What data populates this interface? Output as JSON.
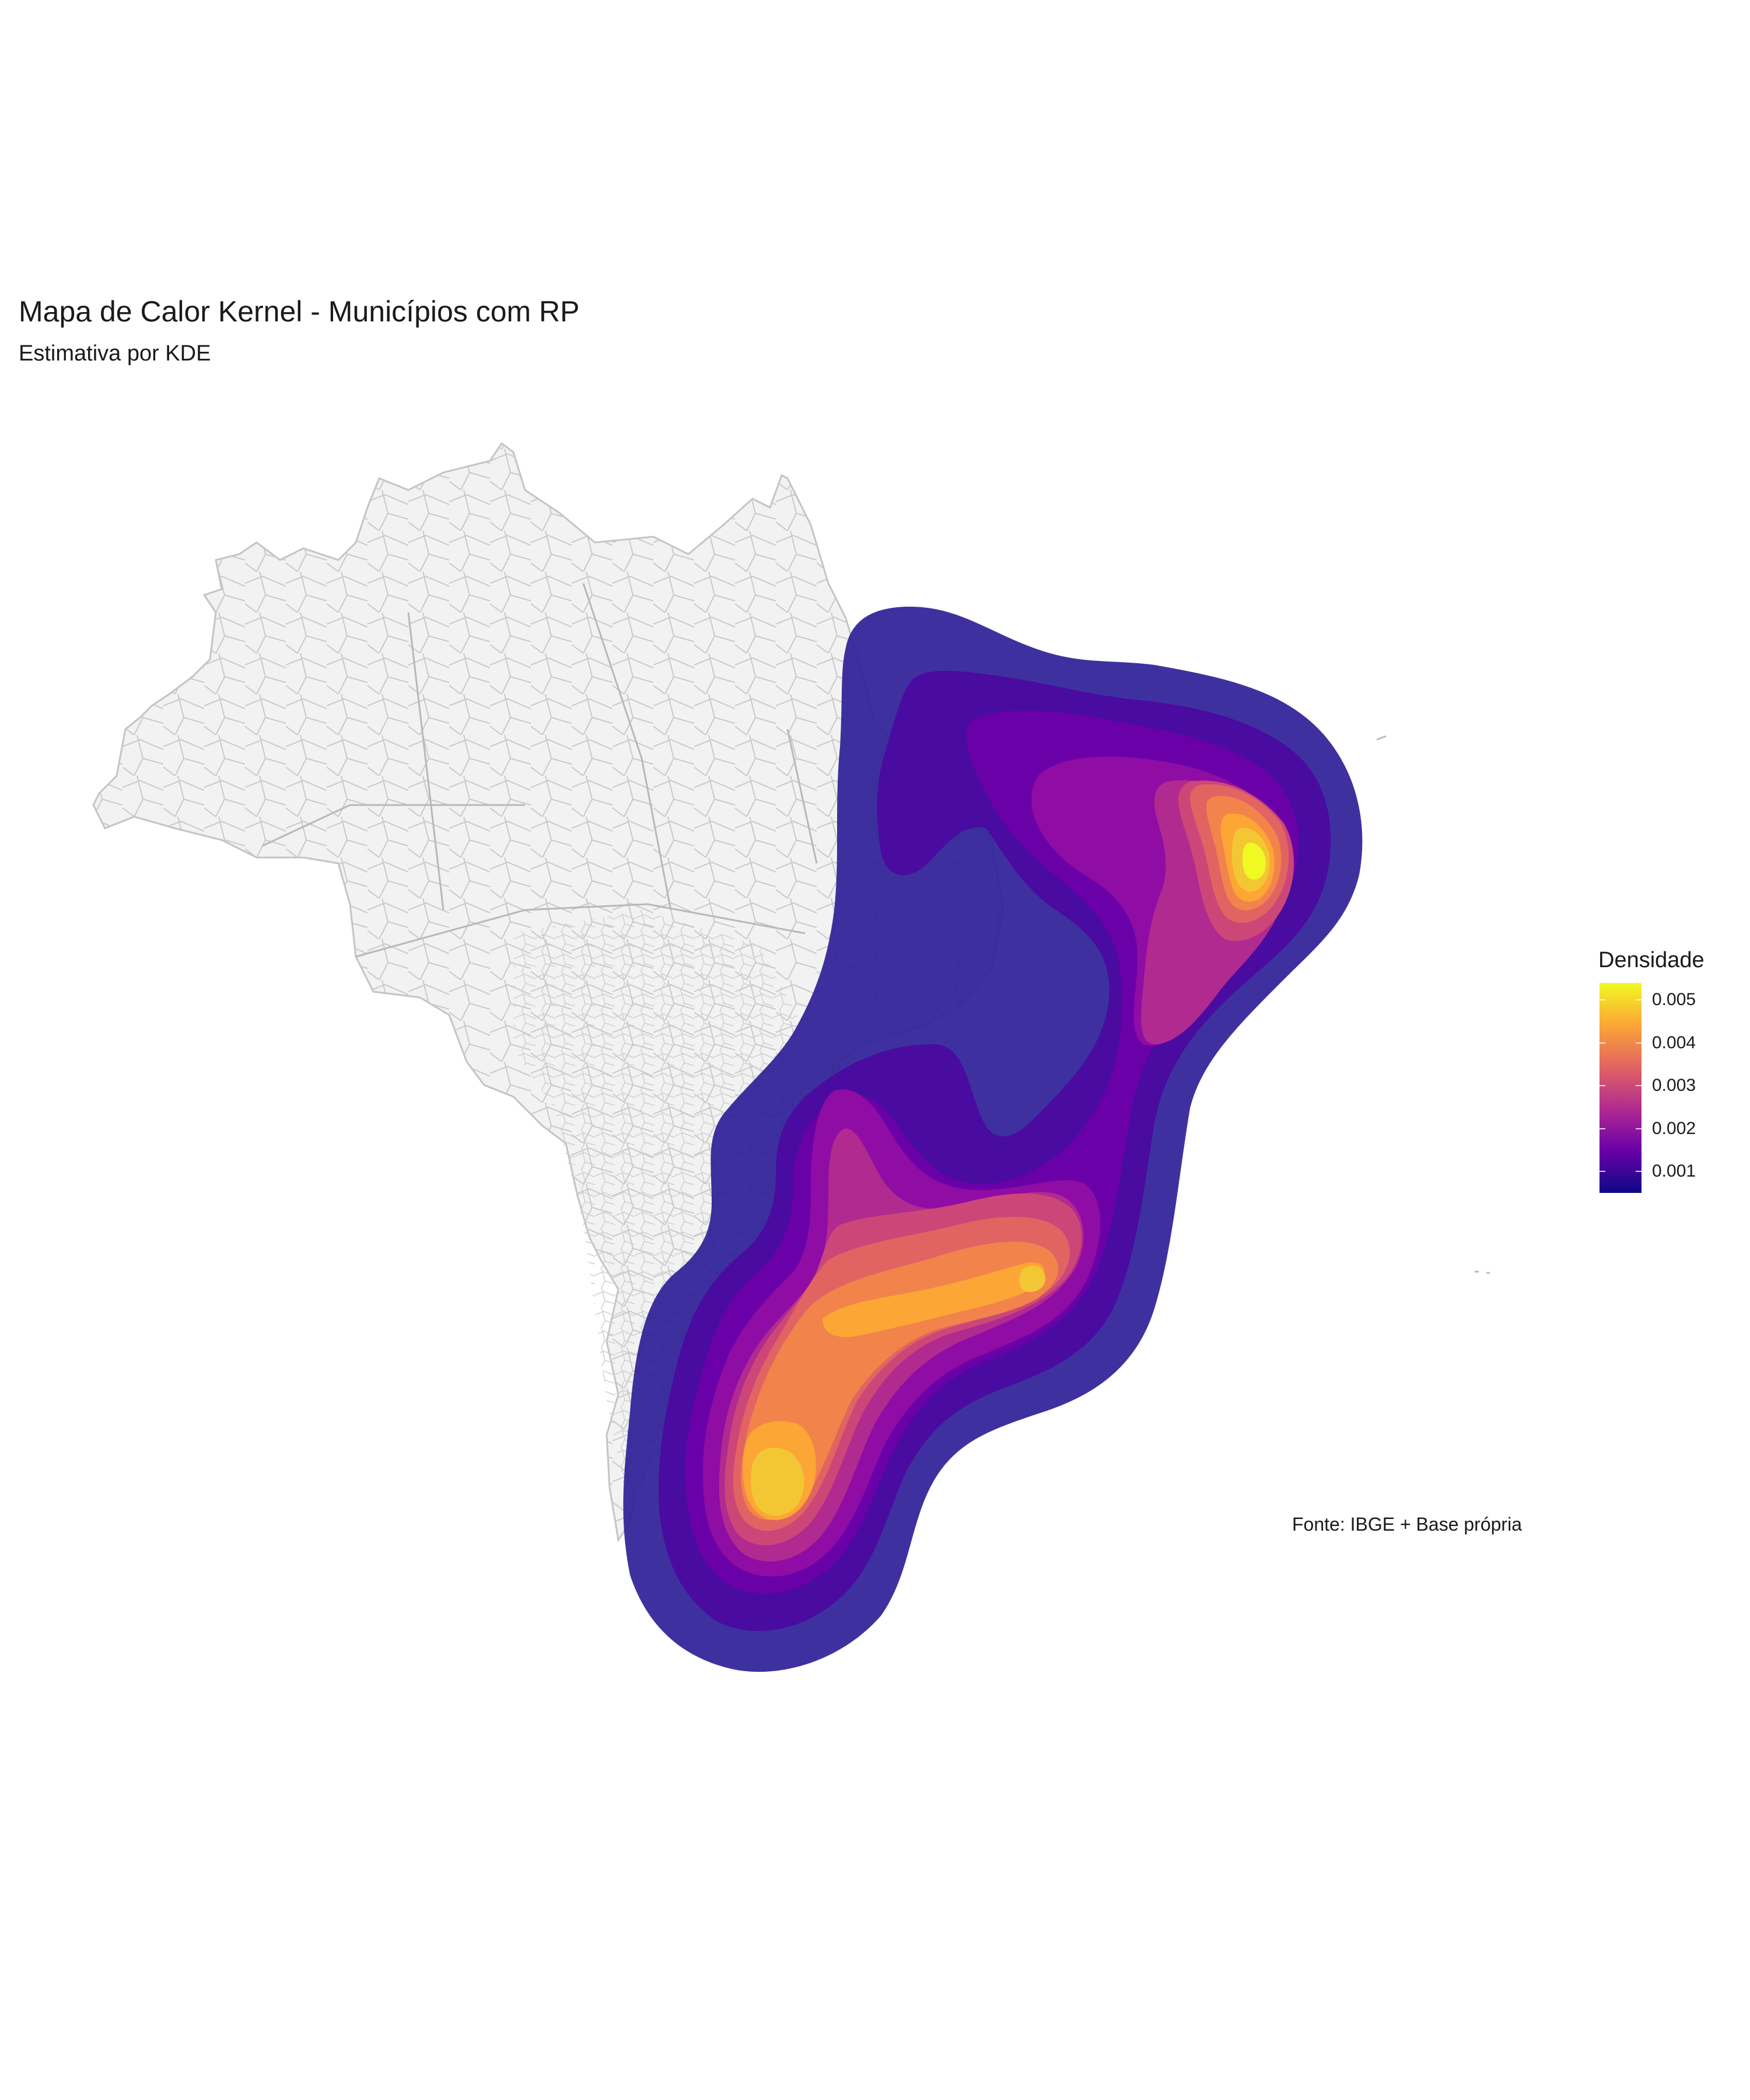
{
  "title": "Mapa de Calor Kernel - Municípios com RP",
  "subtitle": "Estimativa por KDE",
  "caption": "Fonte: IBGE + Base própria",
  "legend": {
    "title": "Densidade",
    "ticks": [
      "0.005",
      "0.004",
      "0.003",
      "0.002",
      "0.001"
    ],
    "tick_values": [
      0.005,
      0.004,
      0.003,
      0.002,
      0.001
    ],
    "range": [
      0.0005,
      0.0054
    ],
    "palette": [
      "#0d0887",
      "#6a00a8",
      "#b12a90",
      "#e16462",
      "#fca636",
      "#f0f921"
    ]
  },
  "colors": {
    "land": "#f2f2f2",
    "borders": "#c8c8c8",
    "density_levels": [
      "#2e1f97",
      "#4b0aa1",
      "#6a00a8",
      "#8f0da4",
      "#b12a90",
      "#cc4778",
      "#e16462",
      "#f2844b",
      "#fca636",
      "#f3c734",
      "#f0f921"
    ]
  }
}
